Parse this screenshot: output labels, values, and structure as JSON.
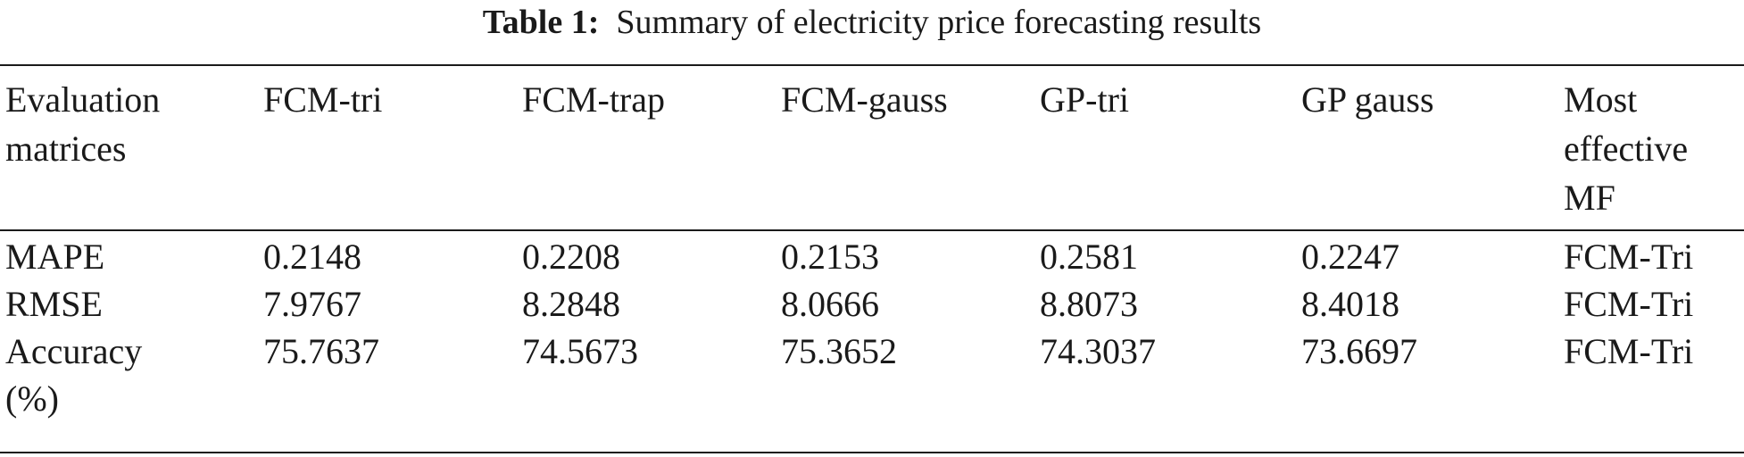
{
  "caption": {
    "label": "Table 1:",
    "text": "Summary of electricity price forecasting results"
  },
  "table": {
    "headers": [
      [
        "Evaluation",
        "matrices"
      ],
      [
        "FCM-tri"
      ],
      [
        "FCM-trap"
      ],
      [
        "FCM-gauss"
      ],
      [
        "GP-tri"
      ],
      [
        "GP gauss"
      ],
      [
        "Most",
        "effective",
        "MF"
      ]
    ],
    "rows": [
      {
        "metric": [
          "MAPE"
        ],
        "values": [
          "0.2148",
          "0.2208",
          "0.2153",
          "0.2581",
          "0.2247"
        ],
        "best": "FCM-Tri"
      },
      {
        "metric": [
          "RMSE"
        ],
        "values": [
          "7.9767",
          "8.2848",
          "8.0666",
          "8.8073",
          "8.4018"
        ],
        "best": "FCM-Tri"
      },
      {
        "metric": [
          "Accuracy",
          "(%)"
        ],
        "values": [
          "75.7637",
          "74.5673",
          "75.3652",
          "74.3037",
          "73.6697"
        ],
        "best": "FCM-Tri"
      }
    ]
  }
}
